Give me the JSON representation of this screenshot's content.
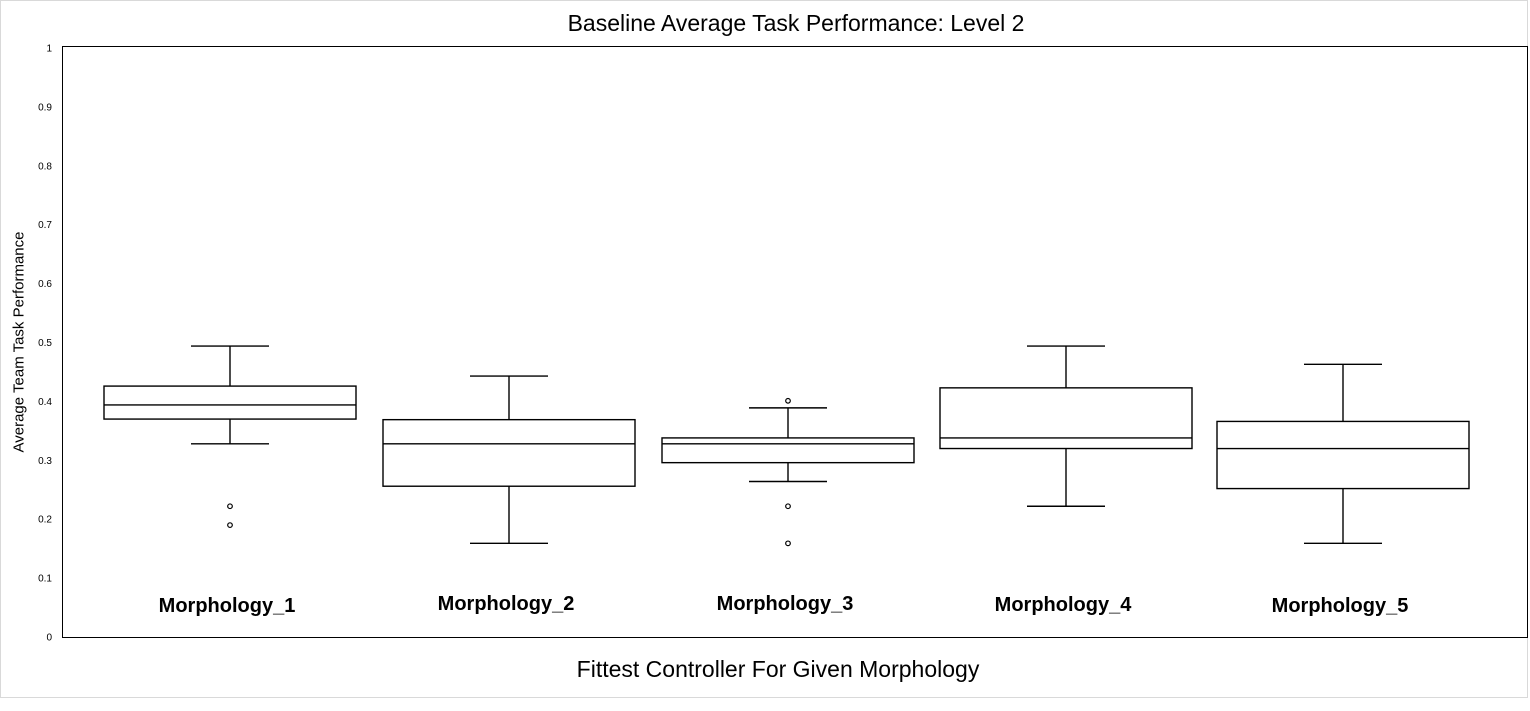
{
  "chart_data": {
    "type": "box",
    "title": "Baseline Average Task Performance: Level 2",
    "xlabel": "Fittest Controller For Given Morphology",
    "ylabel": "Average Team Task Performance",
    "ylim": [
      0,
      1
    ],
    "yticks": [
      "0",
      "0.1",
      "0.2",
      "0.3",
      "0.4",
      "0.5",
      "0.6",
      "0.7",
      "0.8",
      "0.9",
      "1"
    ],
    "grid": false,
    "categories": [
      "Morphology_1",
      "Morphology_2",
      "Morphology_3",
      "Morphology_4",
      "Morphology_5"
    ],
    "boxes": [
      {
        "whisker_low": 0.328,
        "q1": 0.37,
        "median": 0.394,
        "q3": 0.426,
        "whisker_high": 0.494,
        "outliers": [
          0.222,
          0.19
        ]
      },
      {
        "whisker_low": 0.159,
        "q1": 0.256,
        "median": 0.328,
        "q3": 0.369,
        "whisker_high": 0.443,
        "outliers": []
      },
      {
        "whisker_low": 0.264,
        "q1": 0.296,
        "median": 0.328,
        "q3": 0.338,
        "whisker_high": 0.389,
        "outliers": [
          0.401,
          0.222,
          0.159
        ]
      },
      {
        "whisker_low": 0.222,
        "q1": 0.32,
        "median": 0.338,
        "q3": 0.423,
        "whisker_high": 0.494,
        "outliers": []
      },
      {
        "whisker_low": 0.159,
        "q1": 0.252,
        "median": 0.32,
        "q3": 0.366,
        "whisker_high": 0.463,
        "outliers": []
      }
    ]
  }
}
